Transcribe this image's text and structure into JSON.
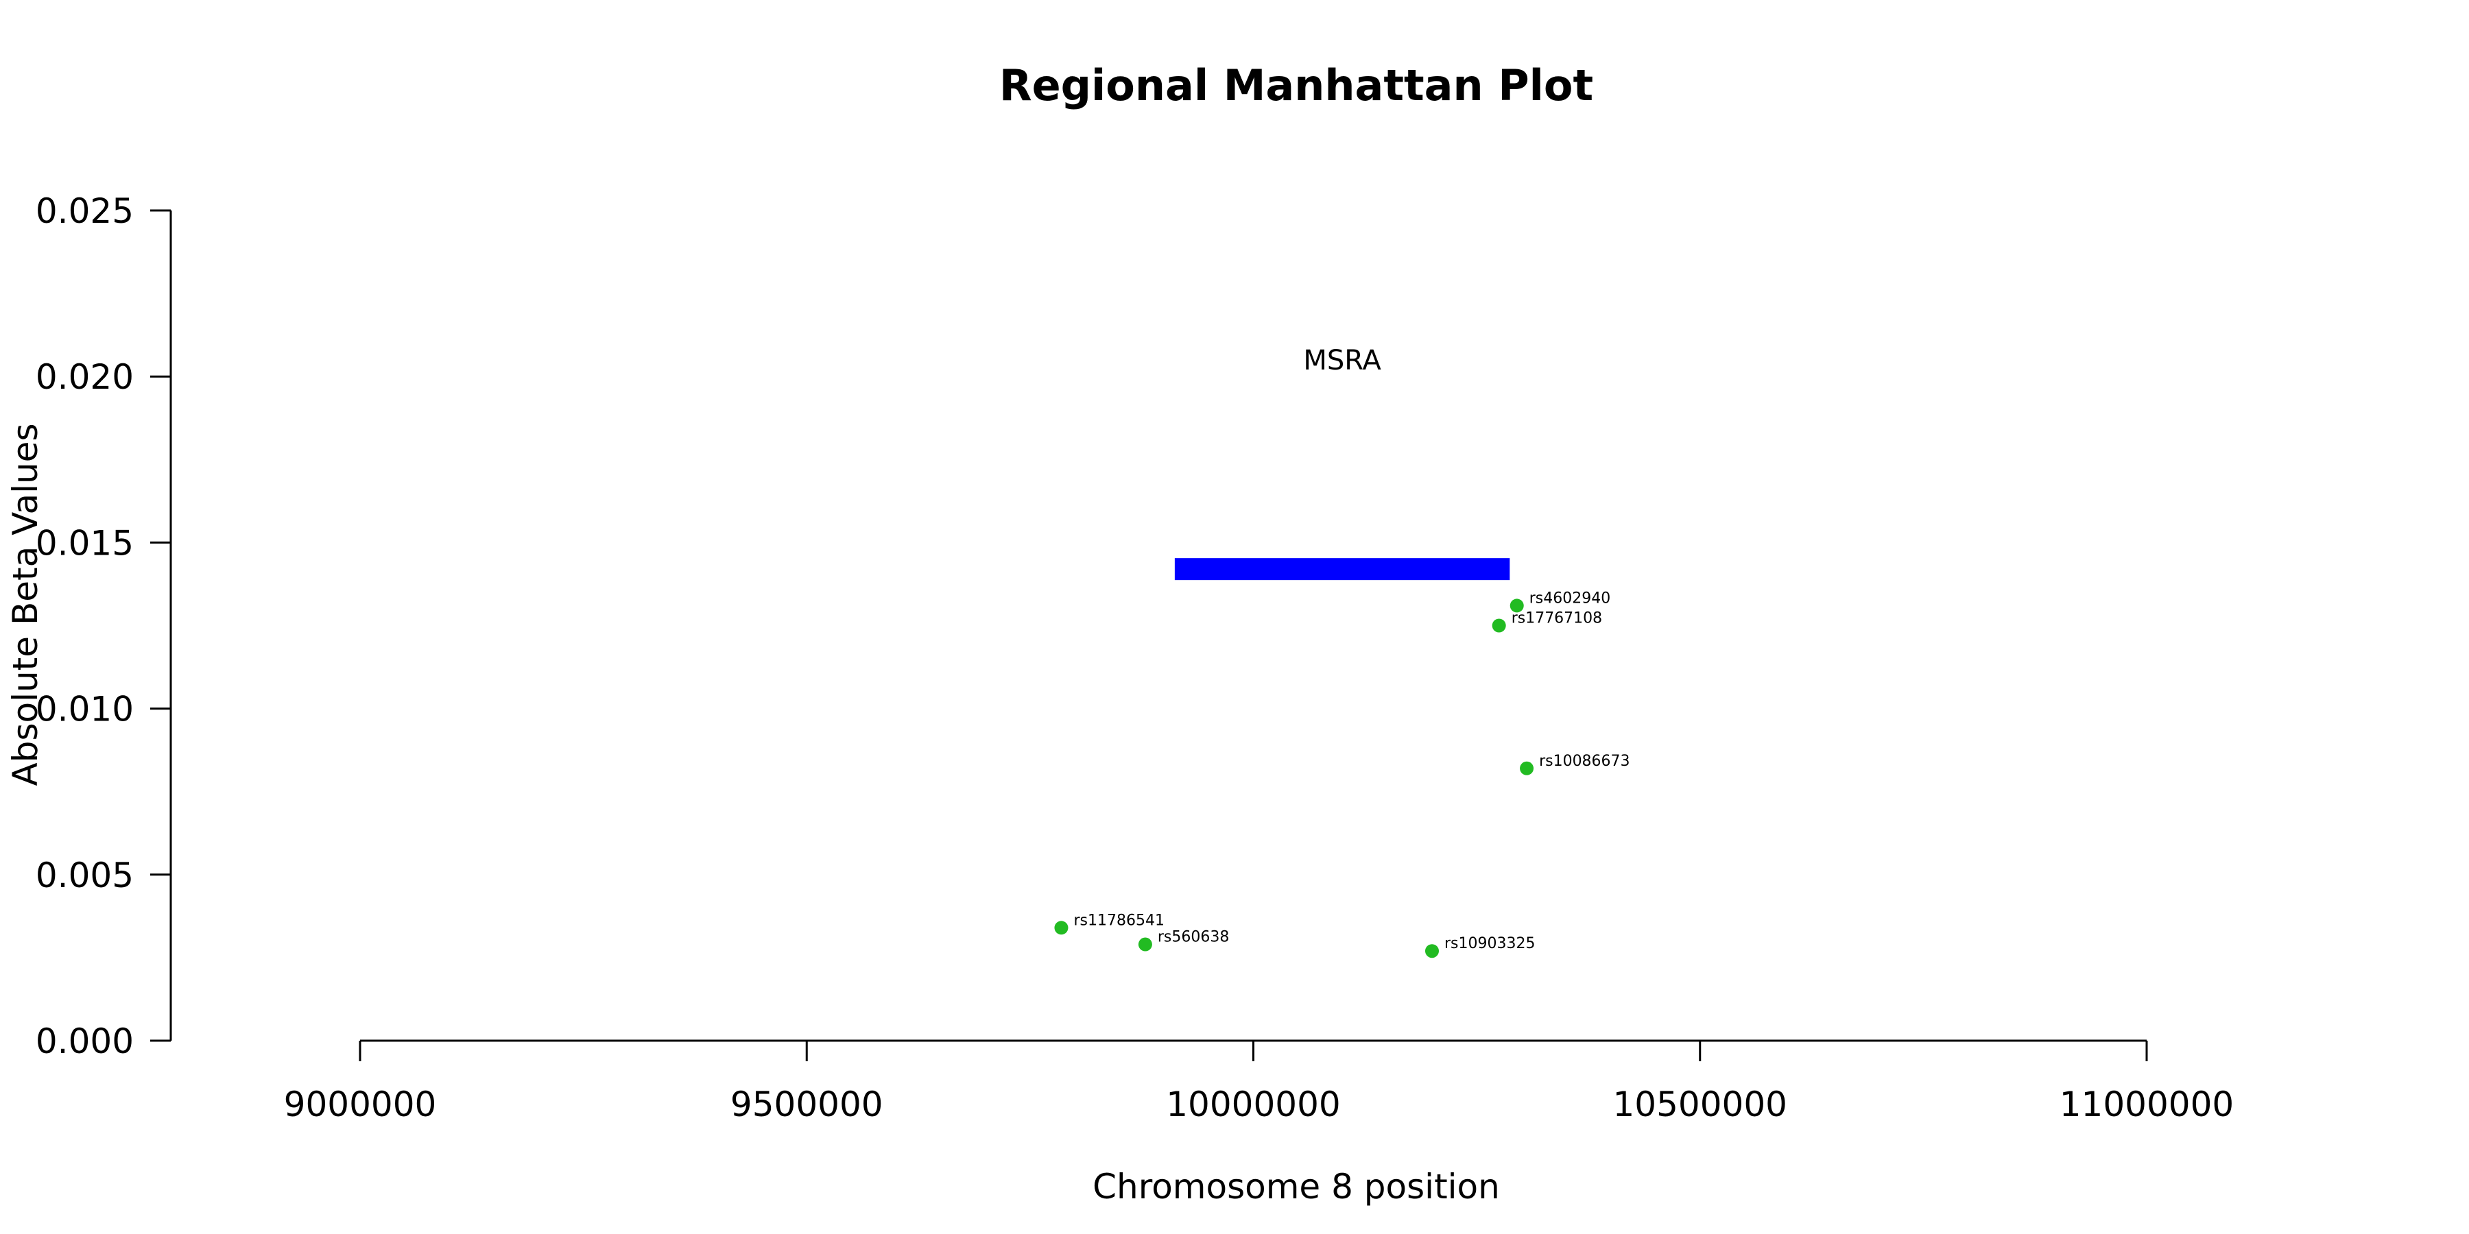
{
  "chart_data": {
    "type": "scatter",
    "title": "Regional Manhattan Plot",
    "xlabel": "Chromosome 8 position",
    "ylabel": "Absolute Beta Values",
    "xlim": [
      9000000,
      11000000
    ],
    "ylim": [
      0,
      0.025
    ],
    "x_ticks": [
      9000000,
      9500000,
      10000000,
      10500000,
      11000000
    ],
    "x_tick_labels": [
      "9000000",
      "9500000",
      "10000000",
      "10500000",
      "11000000"
    ],
    "y_ticks": [
      0,
      0.005,
      0.01,
      0.015,
      0.02,
      0.025
    ],
    "y_tick_labels": [
      "0.000",
      "0.005",
      "0.010",
      "0.015",
      "0.020",
      "0.025"
    ],
    "grid": false,
    "point_color": "#22bb22",
    "points": [
      {
        "snp": "rs4602940",
        "x": 10295000,
        "y": 0.0131
      },
      {
        "snp": "rs17767108",
        "x": 10275000,
        "y": 0.0125
      },
      {
        "snp": "rs10086673",
        "x": 10306000,
        "y": 0.0082
      },
      {
        "snp": "rs11786541",
        "x": 9785000,
        "y": 0.0034
      },
      {
        "snp": "rs560638",
        "x": 9879000,
        "y": 0.0029
      },
      {
        "snp": "rs10903325",
        "x": 10200000,
        "y": 0.0027
      }
    ],
    "gene": {
      "name": "MSRA",
      "start": 9912000,
      "end": 10287000,
      "y": 0.0142,
      "label_y": 0.0205,
      "color": "#0000ff"
    }
  }
}
